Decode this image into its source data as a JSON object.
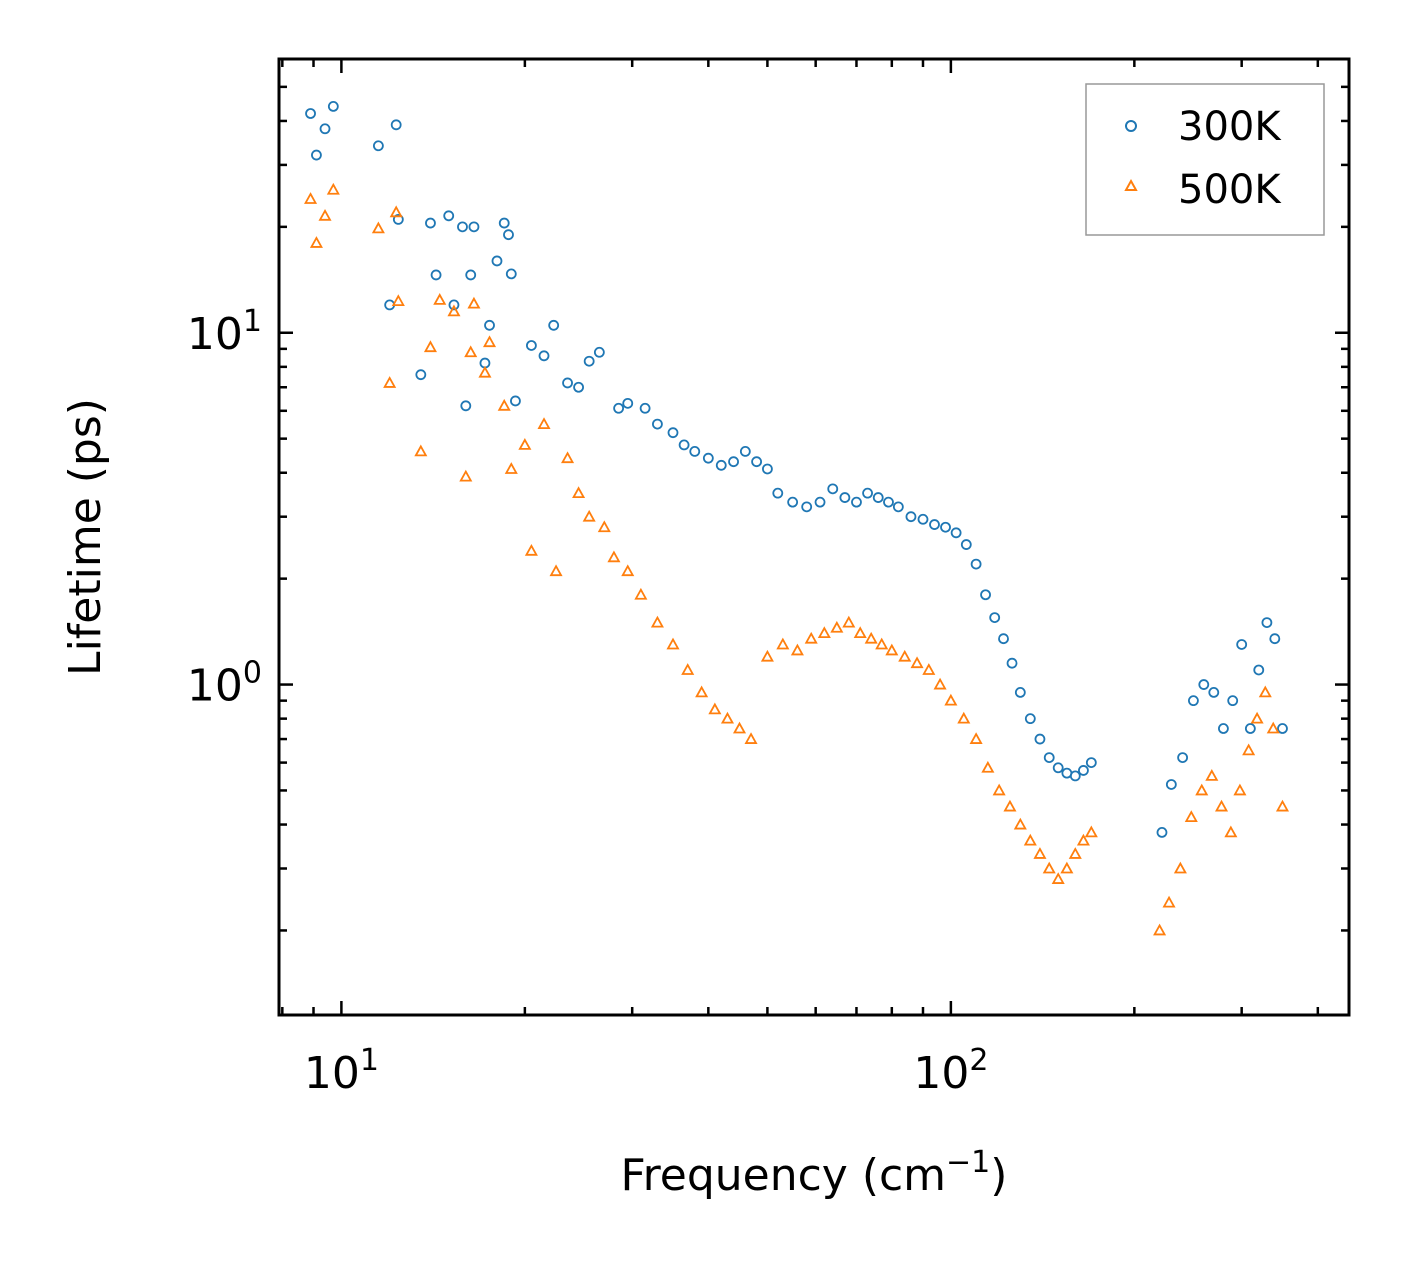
{
  "chart_data": {
    "type": "scatter",
    "xscale": "log",
    "yscale": "log",
    "xlabel": "Frequency (cm",
    "xlabel_sup": "−1",
    "xlabel_end": ")",
    "ylabel": "Lifetime (ps)",
    "xlim": [
      7.9,
      450
    ],
    "ylim": [
      0.115,
      60
    ],
    "xticks": [
      {
        "base": "10",
        "exp": "1",
        "value": 10
      },
      {
        "base": "10",
        "exp": "2",
        "value": 100
      }
    ],
    "yticks": [
      {
        "base": "10",
        "exp": "0",
        "value": 1
      },
      {
        "base": "10",
        "exp": "1",
        "value": 10
      }
    ],
    "legend_position": "top-right",
    "series": [
      {
        "name": "300K",
        "marker": "circle",
        "color": "#1f77b4",
        "x": [
          8.9,
          9.1,
          9.4,
          9.7,
          11.5,
          12,
          12.3,
          12.4,
          13.5,
          14,
          14.3,
          15,
          15.3,
          15.8,
          16,
          16.3,
          16.5,
          17.2,
          17.5,
          18,
          18.5,
          18.8,
          19,
          19.3,
          20.5,
          21.5,
          22.3,
          23.5,
          24.5,
          25.5,
          26.5,
          28.5,
          29.5,
          31.5,
          33,
          35,
          36.5,
          38,
          40,
          42,
          44,
          46,
          48,
          50,
          52,
          55,
          58,
          61,
          64,
          67,
          70,
          73,
          76,
          79,
          82,
          86,
          90,
          94,
          98,
          102,
          106,
          110,
          114,
          118,
          122,
          126,
          130,
          135,
          140,
          145,
          150,
          155,
          160,
          165,
          170,
          222,
          230,
          240,
          250,
          260,
          270,
          280,
          290,
          300,
          310,
          320,
          330,
          340,
          350
        ],
        "y": [
          42,
          32,
          38,
          44,
          34,
          12,
          39,
          21,
          7.6,
          20.5,
          14.6,
          21.5,
          12,
          20,
          6.2,
          14.6,
          20,
          8.2,
          10.5,
          16,
          20.5,
          19,
          14.7,
          6.4,
          9.2,
          8.6,
          10.5,
          7.2,
          7,
          8.3,
          8.8,
          6.1,
          6.3,
          6.1,
          5.5,
          5.2,
          4.8,
          4.6,
          4.4,
          4.2,
          4.3,
          4.6,
          4.3,
          4.1,
          3.5,
          3.3,
          3.2,
          3.3,
          3.6,
          3.4,
          3.3,
          3.5,
          3.4,
          3.3,
          3.2,
          3.0,
          2.95,
          2.85,
          2.8,
          2.7,
          2.5,
          2.2,
          1.8,
          1.55,
          1.35,
          1.15,
          0.95,
          0.8,
          0.7,
          0.62,
          0.58,
          0.56,
          0.55,
          0.57,
          0.6,
          0.38,
          0.52,
          0.62,
          0.9,
          1.0,
          0.95,
          0.75,
          0.9,
          1.3,
          0.75,
          1.1,
          1.5,
          1.35,
          0.75
        ]
      },
      {
        "name": "500K",
        "marker": "triangle",
        "color": "#ff7f0e",
        "x": [
          8.9,
          9.1,
          9.4,
          9.7,
          11.5,
          12,
          12.3,
          12.4,
          13.5,
          14,
          14.5,
          15.3,
          16,
          16.3,
          16.5,
          17.2,
          17.5,
          18.5,
          19,
          20,
          20.5,
          21.5,
          22.5,
          23.5,
          24.5,
          25.5,
          27,
          28,
          29.5,
          31,
          33,
          35,
          37,
          39,
          41,
          43,
          45,
          47,
          50,
          53,
          56,
          59,
          62,
          65,
          68,
          71,
          74,
          77,
          80,
          84,
          88,
          92,
          96,
          100,
          105,
          110,
          115,
          120,
          125,
          130,
          135,
          140,
          145,
          150,
          155,
          160,
          165,
          170,
          220,
          228,
          238,
          248,
          258,
          268,
          278,
          288,
          298,
          308,
          318,
          328,
          338,
          350
        ],
        "y": [
          24,
          18,
          21.5,
          25.5,
          19.8,
          7.2,
          22,
          12.3,
          4.6,
          9.1,
          12.4,
          11.5,
          3.9,
          8.8,
          12.1,
          7.7,
          9.4,
          6.2,
          4.1,
          4.8,
          2.4,
          5.5,
          2.1,
          4.4,
          3.5,
          3.0,
          2.8,
          2.3,
          2.1,
          1.8,
          1.5,
          1.3,
          1.1,
          0.95,
          0.85,
          0.8,
          0.75,
          0.7,
          1.2,
          1.3,
          1.25,
          1.35,
          1.4,
          1.45,
          1.5,
          1.4,
          1.35,
          1.3,
          1.25,
          1.2,
          1.15,
          1.1,
          1.0,
          0.9,
          0.8,
          0.7,
          0.58,
          0.5,
          0.45,
          0.4,
          0.36,
          0.33,
          0.3,
          0.28,
          0.3,
          0.33,
          0.36,
          0.38,
          0.2,
          0.24,
          0.3,
          0.42,
          0.5,
          0.55,
          0.45,
          0.38,
          0.5,
          0.65,
          0.8,
          0.95,
          0.75,
          0.45
        ]
      }
    ]
  }
}
